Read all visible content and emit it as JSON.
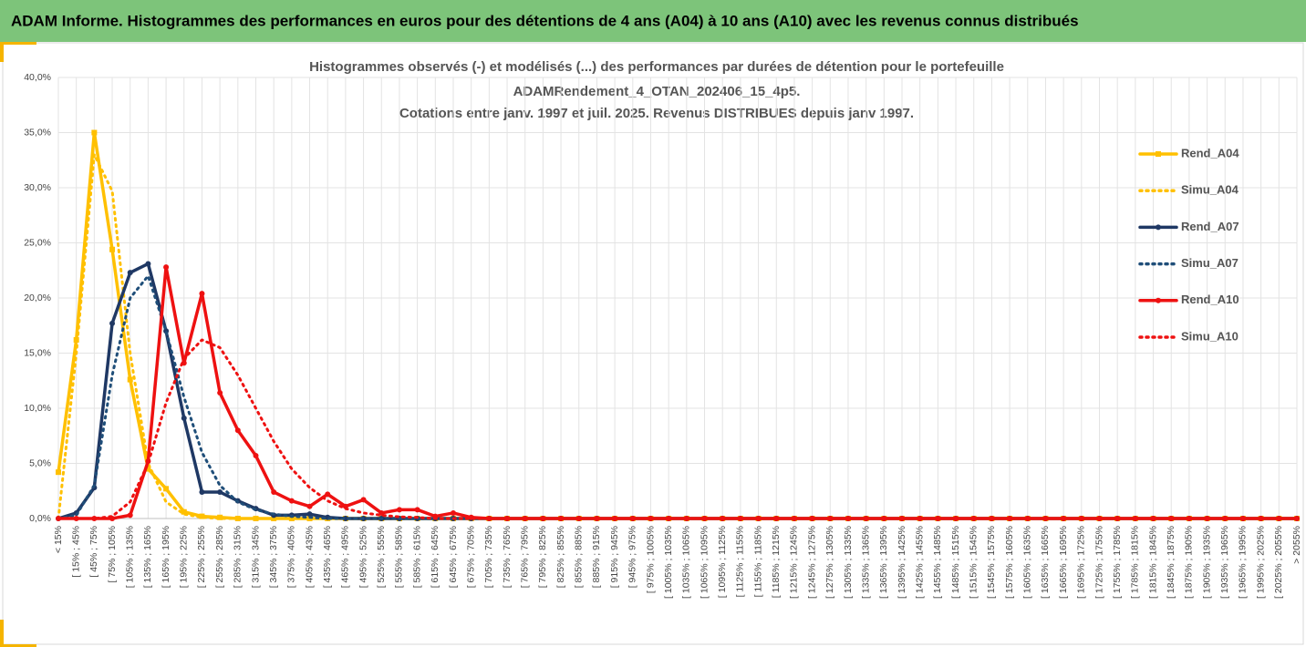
{
  "header": "ADAM Informe. Histogrammes des performances en euros pour des détentions de 4 ans (A04) à 10 ans (A10) avec les revenus connus distribués",
  "chart_data": {
    "type": "line",
    "title": [
      "Histogrammes observés (-) et modélisés (...) des performances par durées de détention pour le portefeuille",
      "ADAMRendement_4_OTAN_202406_15_4p5.",
      "Cotations entre janv. 1997 et juil. 2025. Revenus DISTRIBUES depuis janv 1997."
    ],
    "categories": [
      "< 15%",
      "[ 15% ; 45%",
      "[ 45% ; 75%",
      "[ 75% ; 105%",
      "[ 105% ; 135%",
      "[ 135% ; 165%",
      "[ 165% ; 195%",
      "[ 195% ; 225%",
      "[ 225% ; 255%",
      "[ 255% ; 285%",
      "[ 285% ; 315%",
      "[ 315% ; 345%",
      "[ 345% ; 375%",
      "[ 375% ; 405%",
      "[ 405% ; 435%",
      "[ 435% ; 465%",
      "[ 465% ; 495%",
      "[ 495% ; 525%",
      "[ 525% ; 555%",
      "[ 555% ; 585%",
      "[ 585% ; 615%",
      "[ 615% ; 645%",
      "[ 645% ; 675%",
      "[ 675% ; 705%",
      "[ 705% ; 735%",
      "[ 735% ; 765%",
      "[ 765% ; 795%",
      "[ 795% ; 825%",
      "[ 825% ; 855%",
      "[ 855% ; 885%",
      "[ 885% ; 915%",
      "[ 915% ; 945%",
      "[ 945% ; 975%",
      "[ 975% ; 1005%",
      "[ 1005% ; 1035%",
      "[ 1035% ; 1065%",
      "[ 1065% ; 1095%",
      "[ 1095% ; 1125%",
      "[ 1125% ; 1155%",
      "[ 1155% ; 1185%",
      "[ 1185% ; 1215%",
      "[ 1215% ; 1245%",
      "[ 1245% ; 1275%",
      "[ 1275% ; 1305%",
      "[ 1305% ; 1335%",
      "[ 1335% ; 1365%",
      "[ 1365% ; 1395%",
      "[ 1395% ; 1425%",
      "[ 1425% ; 1455%",
      "[ 1455% ; 1485%",
      "[ 1485% ; 1515%",
      "[ 1515% ; 1545%",
      "[ 1545% ; 1575%",
      "[ 1575% ; 1605%",
      "[ 1605% ; 1635%",
      "[ 1635% ; 1665%",
      "[ 1665% ; 1695%",
      "[ 1695% ; 1725%",
      "[ 1725% ; 1755%",
      "[ 1755% ; 1785%",
      "[ 1785% ; 1815%",
      "[ 1815% ; 1845%",
      "[ 1845% ; 1875%",
      "[ 1875% ; 1905%",
      "[ 1905% ; 1935%",
      "[ 1935% ; 1965%",
      "[ 1965% ; 1995%",
      "[ 1995% ; 2025%",
      "[ 2025% ; 2055%",
      "> 2055%"
    ],
    "series": [
      {
        "name": "Rend_A04",
        "color": "#ffc000",
        "style": "solid",
        "marker": "square",
        "values": [
          4.2,
          16.2,
          35,
          24.4,
          12.6,
          4.5,
          2.7,
          0.6,
          0.2,
          0.1,
          0,
          0,
          0,
          0,
          0,
          0,
          0,
          0,
          0,
          0,
          0,
          0,
          0,
          0,
          0,
          0,
          0,
          0,
          0,
          0,
          0,
          0,
          0,
          0,
          0,
          0,
          0,
          0,
          0,
          0,
          0,
          0,
          0,
          0,
          0,
          0,
          0,
          0,
          0,
          0,
          0,
          0,
          0,
          0,
          0,
          0,
          0,
          0,
          0,
          0,
          0,
          0,
          0,
          0,
          0,
          0,
          0,
          0,
          0,
          0
        ]
      },
      {
        "name": "Simu_A04",
        "color": "#ffc000",
        "style": "dotted",
        "marker": null,
        "values": [
          0,
          15,
          33,
          29.7,
          15,
          5,
          1.5,
          0.4,
          0.1,
          0,
          0,
          0,
          0,
          0,
          0,
          0,
          0,
          0,
          0,
          0,
          0,
          0,
          0,
          0,
          0,
          0,
          0,
          0,
          0,
          0,
          0,
          0,
          0,
          0,
          0,
          0,
          0,
          0,
          0,
          0,
          0,
          0,
          0,
          0,
          0,
          0,
          0,
          0,
          0,
          0,
          0,
          0,
          0,
          0,
          0,
          0,
          0,
          0,
          0,
          0,
          0,
          0,
          0,
          0,
          0,
          0,
          0,
          0,
          0,
          0
        ]
      },
      {
        "name": "Rend_A07",
        "color": "#1f3864",
        "style": "solid",
        "marker": "circle",
        "values": [
          0,
          0.5,
          2.8,
          17.7,
          22.3,
          23.1,
          17,
          9.1,
          2.4,
          2.4,
          1.6,
          0.9,
          0.3,
          0.3,
          0.4,
          0.1,
          0,
          0,
          0,
          0,
          0,
          0,
          0,
          0,
          0,
          0,
          0,
          0,
          0,
          0,
          0,
          0,
          0,
          0,
          0,
          0,
          0,
          0,
          0,
          0,
          0,
          0,
          0,
          0,
          0,
          0,
          0,
          0,
          0,
          0,
          0,
          0,
          0,
          0,
          0,
          0,
          0,
          0,
          0,
          0,
          0,
          0,
          0,
          0,
          0,
          0,
          0,
          0,
          0,
          0
        ]
      },
      {
        "name": "Simu_A07",
        "color": "#1f4e79",
        "style": "dotted",
        "marker": null,
        "values": [
          0,
          0.3,
          3,
          13,
          20,
          22,
          17,
          11,
          6,
          3,
          1.5,
          0.8,
          0.4,
          0.2,
          0.1,
          0,
          0,
          0,
          0,
          0,
          0,
          0,
          0,
          0,
          0,
          0,
          0,
          0,
          0,
          0,
          0,
          0,
          0,
          0,
          0,
          0,
          0,
          0,
          0,
          0,
          0,
          0,
          0,
          0,
          0,
          0,
          0,
          0,
          0,
          0,
          0,
          0,
          0,
          0,
          0,
          0,
          0,
          0,
          0,
          0,
          0,
          0,
          0,
          0,
          0,
          0,
          0,
          0,
          0,
          0
        ]
      },
      {
        "name": "Rend_A10",
        "color": "#ee1111",
        "style": "solid",
        "marker": "circle",
        "values": [
          0,
          0,
          0,
          0,
          0.3,
          5.2,
          22.8,
          14.1,
          20.4,
          11.4,
          8,
          5.7,
          2.4,
          1.6,
          1.1,
          2.2,
          1.1,
          1.7,
          0.5,
          0.8,
          0.8,
          0.2,
          0.5,
          0.1,
          0,
          0,
          0,
          0,
          0,
          0,
          0,
          0,
          0,
          0,
          0,
          0,
          0,
          0,
          0,
          0,
          0,
          0,
          0,
          0,
          0,
          0,
          0,
          0,
          0,
          0,
          0,
          0,
          0,
          0,
          0,
          0,
          0,
          0,
          0,
          0,
          0,
          0,
          0,
          0,
          0,
          0,
          0,
          0,
          0,
          0
        ]
      },
      {
        "name": "Simu_A10",
        "color": "#ee1111",
        "style": "dotted",
        "marker": null,
        "values": [
          0,
          0,
          0,
          0.2,
          1.5,
          5,
          10.5,
          14.5,
          16.2,
          15.5,
          13,
          10,
          7,
          4.5,
          2.8,
          1.6,
          0.9,
          0.5,
          0.3,
          0.15,
          0.1,
          0,
          0,
          0,
          0,
          0,
          0,
          0,
          0,
          0,
          0,
          0,
          0,
          0,
          0,
          0,
          0,
          0,
          0,
          0,
          0,
          0,
          0,
          0,
          0,
          0,
          0,
          0,
          0,
          0,
          0,
          0,
          0,
          0,
          0,
          0,
          0,
          0,
          0,
          0,
          0,
          0,
          0,
          0,
          0,
          0,
          0,
          0,
          0,
          0
        ]
      }
    ],
    "ylim": [
      0,
      40
    ],
    "yticks": [
      {
        "value": 0,
        "label": "0,0%"
      },
      {
        "value": 5,
        "label": "5,0%"
      },
      {
        "value": 10,
        "label": "10,0%"
      },
      {
        "value": 15,
        "label": "15,0%"
      },
      {
        "value": 20,
        "label": "20,0%"
      },
      {
        "value": 25,
        "label": "25,0%"
      },
      {
        "value": 30,
        "label": "30,0%"
      },
      {
        "value": 35,
        "label": "35,0%"
      },
      {
        "value": 40,
        "label": "40,0%"
      }
    ],
    "grid": true,
    "legend": "right"
  }
}
